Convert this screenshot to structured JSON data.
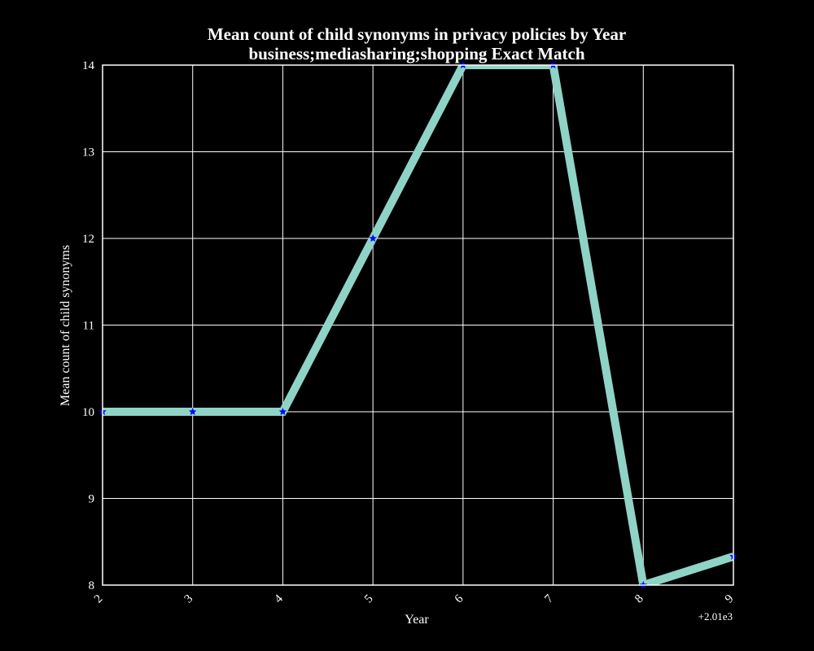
{
  "chart_data": {
    "type": "line",
    "title": "Mean count of child synonyms in privacy policies by Year",
    "subtitle": "business;mediasharing;shopping Exact Match",
    "xlabel": "Year",
    "ylabel": "Mean count of child synonyms",
    "x_offset_label": "+2.01e3",
    "x": [
      2012,
      2013,
      2014,
      2015,
      2016,
      2017,
      2018,
      2019
    ],
    "x_tick_labels": [
      "2",
      "3",
      "4",
      "5",
      "6",
      "7",
      "8",
      "9"
    ],
    "y_ticks": [
      "8",
      "9",
      "10",
      "11",
      "12",
      "13",
      "14"
    ],
    "xlim": [
      2012,
      2019
    ],
    "ylim": [
      8,
      14
    ],
    "grid": true,
    "series": [
      {
        "values": [
          10,
          10,
          10,
          12,
          14,
          14,
          8,
          8.33
        ],
        "color": "#8fd3c6",
        "marker": "star",
        "marker_color": "#0000ff"
      }
    ],
    "background": "#000000",
    "foreground": "#ffffff"
  }
}
